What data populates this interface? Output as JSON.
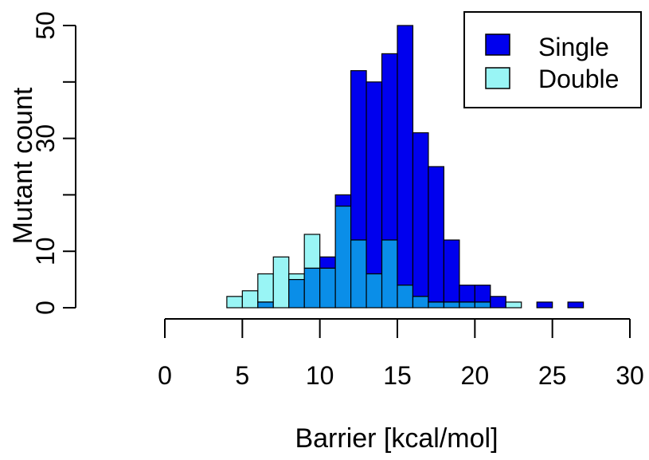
{
  "chart_data": {
    "type": "bar",
    "xlabel": "Barrier [kcal/mol]",
    "ylabel": "Mutant count",
    "xlim": [
      0,
      30
    ],
    "ylim": [
      0,
      50
    ],
    "bin_width": 1,
    "x_ticks": [
      0,
      5,
      10,
      15,
      20,
      25,
      30
    ],
    "y_ticks": [
      0,
      10,
      30,
      50
    ],
    "grid": false,
    "legend_position": "top-right",
    "series": [
      {
        "name": "Single",
        "color": "#0000ee",
        "bins": [
          {
            "x0": 4,
            "x1": 5,
            "count": 0
          },
          {
            "x0": 5,
            "x1": 6,
            "count": 0
          },
          {
            "x0": 6,
            "x1": 7,
            "count": 1
          },
          {
            "x0": 7,
            "x1": 8,
            "count": 0
          },
          {
            "x0": 8,
            "x1": 9,
            "count": 5
          },
          {
            "x0": 9,
            "x1": 10,
            "count": 7
          },
          {
            "x0": 10,
            "x1": 11,
            "count": 9
          },
          {
            "x0": 11,
            "x1": 12,
            "count": 20
          },
          {
            "x0": 12,
            "x1": 13,
            "count": 42
          },
          {
            "x0": 13,
            "x1": 14,
            "count": 40
          },
          {
            "x0": 14,
            "x1": 15,
            "count": 45
          },
          {
            "x0": 15,
            "x1": 16,
            "count": 50
          },
          {
            "x0": 16,
            "x1": 17,
            "count": 31
          },
          {
            "x0": 17,
            "x1": 18,
            "count": 25
          },
          {
            "x0": 18,
            "x1": 19,
            "count": 12
          },
          {
            "x0": 19,
            "x1": 20,
            "count": 4
          },
          {
            "x0": 20,
            "x1": 21,
            "count": 4
          },
          {
            "x0": 21,
            "x1": 22,
            "count": 2
          },
          {
            "x0": 22,
            "x1": 23,
            "count": 0
          },
          {
            "x0": 23,
            "x1": 24,
            "count": 0
          },
          {
            "x0": 24,
            "x1": 25,
            "count": 1
          },
          {
            "x0": 25,
            "x1": 26,
            "count": 0
          },
          {
            "x0": 26,
            "x1": 27,
            "count": 1
          }
        ]
      },
      {
        "name": "Double",
        "color": "#99f5f5",
        "bins": [
          {
            "x0": 4,
            "x1": 5,
            "count": 2
          },
          {
            "x0": 5,
            "x1": 6,
            "count": 3
          },
          {
            "x0": 6,
            "x1": 7,
            "count": 6
          },
          {
            "x0": 7,
            "x1": 8,
            "count": 9
          },
          {
            "x0": 8,
            "x1": 9,
            "count": 6
          },
          {
            "x0": 9,
            "x1": 10,
            "count": 13
          },
          {
            "x0": 10,
            "x1": 11,
            "count": 7
          },
          {
            "x0": 11,
            "x1": 12,
            "count": 18
          },
          {
            "x0": 12,
            "x1": 13,
            "count": 12
          },
          {
            "x0": 13,
            "x1": 14,
            "count": 6
          },
          {
            "x0": 14,
            "x1": 15,
            "count": 12
          },
          {
            "x0": 15,
            "x1": 16,
            "count": 4
          },
          {
            "x0": 16,
            "x1": 17,
            "count": 2
          },
          {
            "x0": 17,
            "x1": 18,
            "count": 1
          },
          {
            "x0": 18,
            "x1": 19,
            "count": 1
          },
          {
            "x0": 19,
            "x1": 20,
            "count": 1
          },
          {
            "x0": 20,
            "x1": 21,
            "count": 1
          },
          {
            "x0": 21,
            "x1": 22,
            "count": 0
          },
          {
            "x0": 22,
            "x1": 23,
            "count": 1
          },
          {
            "x0": 23,
            "x1": 24,
            "count": 0
          },
          {
            "x0": 24,
            "x1": 25,
            "count": 0
          },
          {
            "x0": 25,
            "x1": 26,
            "count": 0
          },
          {
            "x0": 26,
            "x1": 27,
            "count": 0
          }
        ]
      }
    ],
    "overlap_color": "#0a8ee8"
  }
}
